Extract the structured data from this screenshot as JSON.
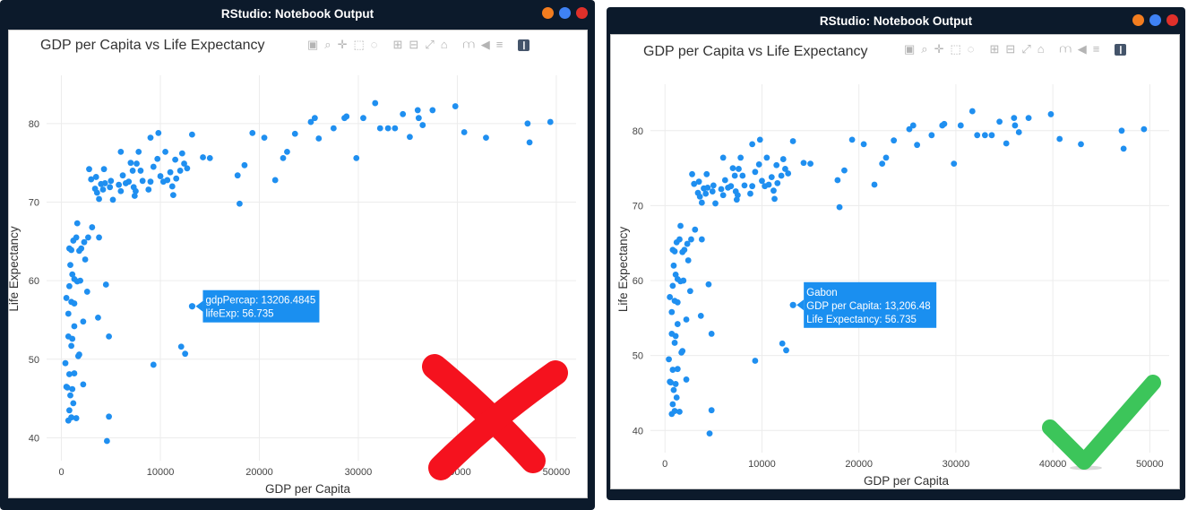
{
  "window": {
    "title": "RStudio: Notebook Output",
    "dot_colors": [
      "#f37d1f",
      "#3f82f4",
      "#e0302a"
    ]
  },
  "modebar_icons": [
    "camera-icon",
    "zoom-icon",
    "pan-icon",
    "box-select-icon",
    "lasso-icon",
    "zoom-in-icon",
    "zoom-out-icon",
    "autoscale-icon",
    "reset-axes-icon",
    "spike-lines-icon",
    "hover-closest-icon",
    "hover-compare-icon",
    "plotly-logo-icon"
  ],
  "plots": [
    {
      "id": "left",
      "tooltip": [
        "gdpPercap: 13206.4845",
        "lifeExp: 56.735"
      ],
      "verdict": "wrong"
    },
    {
      "id": "right",
      "tooltip": [
        "Gabon",
        "GDP per Capita: 13,206.48",
        "Life Expectancy: 56.735"
      ],
      "verdict": "correct"
    }
  ],
  "chart_data": {
    "type": "scatter",
    "title": "GDP per Capita vs Life Expectancy",
    "xlabel": "GDP per Capita",
    "ylabel": "Life Expectancy",
    "xlim": [
      -1500,
      52000
    ],
    "ylim": [
      38,
      85
    ],
    "xticks": [
      0,
      10000,
      20000,
      30000,
      40000,
      50000
    ],
    "xtick_labels": [
      "0",
      "10000",
      "20000",
      "30000",
      "40000",
      "50000"
    ],
    "yticks": [
      40,
      50,
      60,
      70,
      80
    ],
    "ytick_labels": [
      "40",
      "50",
      "60",
      "70",
      "80"
    ],
    "grid": true,
    "marker_color": "#1f8ff0",
    "tooltip_bg": "#1a8ff0",
    "highlight": {
      "x": 13206.48,
      "y": 56.74
    },
    "points": [
      [
        500,
        46.5
      ],
      [
        700,
        42.2
      ],
      [
        800,
        43.5
      ],
      [
        1000,
        42.6
      ],
      [
        1200,
        44.4
      ],
      [
        1500,
        42.5
      ],
      [
        900,
        45.4
      ],
      [
        600,
        46.4
      ],
      [
        400,
        49.5
      ],
      [
        1100,
        46.2
      ],
      [
        800,
        48.1
      ],
      [
        1300,
        48.2
      ],
      [
        2200,
        46.8
      ],
      [
        4600,
        39.6
      ],
      [
        4800,
        42.7
      ],
      [
        700,
        52.9
      ],
      [
        1100,
        52.6
      ],
      [
        1000,
        51.7
      ],
      [
        1300,
        54.2
      ],
      [
        1800,
        50.6
      ],
      [
        1700,
        50.4
      ],
      [
        2200,
        54.8
      ],
      [
        3700,
        55.3
      ],
      [
        4800,
        52.9
      ],
      [
        4500,
        59.5
      ],
      [
        500,
        57.8
      ],
      [
        800,
        59.3
      ],
      [
        1000,
        57.3
      ],
      [
        1300,
        57.1
      ],
      [
        700,
        55.8
      ],
      [
        1300,
        60.2
      ],
      [
        900,
        62.0
      ],
      [
        1100,
        60.8
      ],
      [
        1600,
        59.9
      ],
      [
        1900,
        60.0
      ],
      [
        2600,
        58.6
      ],
      [
        800,
        64.1
      ],
      [
        1000,
        63.9
      ],
      [
        1200,
        65.1
      ],
      [
        1500,
        65.5
      ],
      [
        2000,
        64.1
      ],
      [
        2400,
        62.7
      ],
      [
        2700,
        65.5
      ],
      [
        3800,
        65.5
      ],
      [
        1600,
        67.3
      ],
      [
        1800,
        63.8
      ],
      [
        2300,
        64.9
      ],
      [
        3100,
        66.8
      ],
      [
        2800,
        74.2
      ],
      [
        3000,
        72.9
      ],
      [
        3400,
        71.7
      ],
      [
        3800,
        70.4
      ],
      [
        3600,
        71.2
      ],
      [
        4000,
        72.3
      ],
      [
        4200,
        71.6
      ],
      [
        4400,
        72.4
      ],
      [
        5000,
        72.7
      ],
      [
        4900,
        71.9
      ],
      [
        5200,
        70.3
      ],
      [
        3500,
        73.2
      ],
      [
        4300,
        74.2
      ],
      [
        5800,
        72.2
      ],
      [
        6000,
        71.4
      ],
      [
        6500,
        72.4
      ],
      [
        6200,
        73.4
      ],
      [
        6800,
        72.6
      ],
      [
        7000,
        75.0
      ],
      [
        7200,
        74.0
      ],
      [
        7300,
        71.9
      ],
      [
        7400,
        70.8
      ],
      [
        7500,
        71.4
      ],
      [
        7600,
        74.9
      ],
      [
        8000,
        74.0
      ],
      [
        8200,
        72.7
      ],
      [
        8800,
        71.6
      ],
      [
        9000,
        72.6
      ],
      [
        9300,
        74.5
      ],
      [
        9700,
        75.5
      ],
      [
        10000,
        73.3
      ],
      [
        10300,
        72.6
      ],
      [
        10700,
        72.8
      ],
      [
        11000,
        73.8
      ],
      [
        11200,
        72.0
      ],
      [
        11300,
        70.9
      ],
      [
        11600,
        73.0
      ],
      [
        12000,
        74.0
      ],
      [
        12400,
        74.9
      ],
      [
        12700,
        74.3
      ],
      [
        6000,
        76.4
      ],
      [
        7800,
        76.4
      ],
      [
        9000,
        78.2
      ],
      [
        9800,
        78.8
      ],
      [
        10500,
        76.4
      ],
      [
        11500,
        75.4
      ],
      [
        12200,
        76.2
      ],
      [
        13200,
        78.6
      ],
      [
        14300,
        75.7
      ],
      [
        15000,
        75.6
      ],
      [
        17800,
        73.4
      ],
      [
        18500,
        74.7
      ],
      [
        18000,
        69.8
      ],
      [
        19300,
        78.8
      ],
      [
        20500,
        78.2
      ],
      [
        21600,
        72.8
      ],
      [
        22400,
        75.6
      ],
      [
        22800,
        76.4
      ],
      [
        23600,
        78.7
      ],
      [
        25200,
        80.2
      ],
      [
        25600,
        80.7
      ],
      [
        26000,
        78.1
      ],
      [
        27500,
        79.4
      ],
      [
        28600,
        80.7
      ],
      [
        28800,
        80.9
      ],
      [
        29800,
        75.6
      ],
      [
        30500,
        80.7
      ],
      [
        31700,
        82.6
      ],
      [
        32200,
        79.4
      ],
      [
        33000,
        79.4
      ],
      [
        33700,
        79.4
      ],
      [
        34500,
        81.2
      ],
      [
        35200,
        78.3
      ],
      [
        36000,
        81.7
      ],
      [
        36100,
        80.7
      ],
      [
        36500,
        79.8
      ],
      [
        37500,
        81.7
      ],
      [
        39800,
        82.2
      ],
      [
        40700,
        78.9
      ],
      [
        42900,
        78.2
      ],
      [
        47100,
        80.0
      ],
      [
        47300,
        77.6
      ],
      [
        49400,
        80.2
      ],
      [
        9300,
        49.3
      ],
      [
        12100,
        51.6
      ],
      [
        12500,
        50.7
      ]
    ]
  }
}
